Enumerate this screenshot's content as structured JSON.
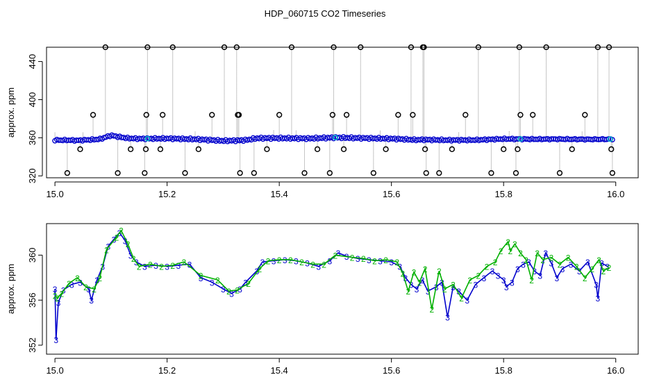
{
  "figure_title": "HDP_060715  CO2 Timeseries",
  "colors": {
    "black": "#000000",
    "grey": "#8c8c8c",
    "blue": "#0000cc",
    "green": "#00b000",
    "cyan": "#00cccc"
  },
  "chart_data": [
    {
      "type": "scatter",
      "title": "",
      "xlabel": "",
      "ylabel": "approx. ppm",
      "xlim": [
        14.985,
        16.04
      ],
      "ylim": [
        318,
        455
      ],
      "x_ticks": [
        "15.0",
        "15.2",
        "15.4",
        "15.6",
        "15.8",
        "16.0"
      ],
      "x_tick_values": [
        15.0,
        15.2,
        15.4,
        15.6,
        15.8,
        16.0
      ],
      "y_ticks": [
        "320",
        "360",
        "400",
        "440"
      ],
      "y_tick_values": [
        320,
        360,
        400,
        440
      ],
      "series": [
        {
          "style": "black-open-circles-with-grey-spikes",
          "outliers": [
            [
              15.022,
              323
            ],
            [
              15.045,
              348
            ],
            [
              15.068,
              384
            ],
            [
              15.09,
              455
            ],
            [
              15.112,
              323
            ],
            [
              15.135,
              348
            ],
            [
              15.16,
              323
            ],
            [
              15.162,
              348
            ],
            [
              15.163,
              384
            ],
            [
              15.165,
              455
            ],
            [
              15.188,
              348
            ],
            [
              15.192,
              384
            ],
            [
              15.21,
              455
            ],
            [
              15.232,
              323
            ],
            [
              15.256,
              348
            ],
            [
              15.28,
              384
            ],
            [
              15.302,
              455
            ],
            [
              15.324,
              455
            ],
            [
              15.326,
              384
            ],
            [
              15.328,
              384
            ],
            [
              15.33,
              323
            ],
            [
              15.355,
              323
            ],
            [
              15.378,
              348
            ],
            [
              15.4,
              384
            ],
            [
              15.422,
              455
            ],
            [
              15.445,
              323
            ],
            [
              15.468,
              348
            ],
            [
              15.49,
              323
            ],
            [
              15.495,
              384
            ],
            [
              15.497,
              455
            ],
            [
              15.515,
              348
            ],
            [
              15.52,
              384
            ],
            [
              15.545,
              455
            ],
            [
              15.568,
              323
            ],
            [
              15.59,
              348
            ],
            [
              15.612,
              384
            ],
            [
              15.635,
              455
            ],
            [
              15.638,
              384
            ],
            [
              15.656,
              455
            ],
            [
              15.658,
              455
            ],
            [
              15.66,
              348
            ],
            [
              15.662,
              323
            ],
            [
              15.685,
              323
            ],
            [
              15.708,
              348
            ],
            [
              15.732,
              384
            ],
            [
              15.755,
              455
            ],
            [
              15.778,
              323
            ],
            [
              15.8,
              348
            ],
            [
              15.822,
              323
            ],
            [
              15.825,
              348
            ],
            [
              15.828,
              455
            ],
            [
              15.83,
              384
            ],
            [
              15.852,
              384
            ],
            [
              15.876,
              455
            ],
            [
              15.9,
              323
            ],
            [
              15.922,
              348
            ],
            [
              15.945,
              384
            ],
            [
              15.968,
              455
            ],
            [
              15.988,
              455
            ],
            [
              15.992,
              348
            ],
            [
              15.994,
              323
            ]
          ],
          "baseline": [
            [
              15.0,
              357.5
            ],
            [
              15.02,
              357.5
            ],
            [
              15.04,
              357.2
            ],
            [
              15.06,
              357.8
            ],
            [
              15.08,
              358.5
            ],
            [
              15.1,
              362.5
            ],
            [
              15.115,
              360.8
            ],
            [
              15.13,
              359.5
            ],
            [
              15.15,
              359.0
            ],
            [
              15.2,
              359.2
            ],
            [
              15.25,
              358.5
            ],
            [
              15.3,
              356.8
            ],
            [
              15.32,
              357.0
            ],
            [
              15.34,
              357.5
            ],
            [
              15.36,
              359.5
            ],
            [
              15.4,
              359.6
            ],
            [
              15.45,
              359.2
            ],
            [
              15.5,
              360.2
            ],
            [
              15.55,
              359.6
            ],
            [
              15.6,
              359.0
            ],
            [
              15.62,
              358.5
            ],
            [
              15.64,
              357.8
            ],
            [
              15.66,
              358.0
            ],
            [
              15.7,
              357.5
            ],
            [
              15.75,
              357.6
            ],
            [
              15.8,
              358.8
            ],
            [
              15.85,
              358.5
            ],
            [
              15.9,
              358.6
            ],
            [
              15.95,
              358.3
            ],
            [
              15.99,
              358.5
            ]
          ]
        }
      ]
    },
    {
      "type": "line",
      "title": "",
      "xlabel": "",
      "ylabel": "approx. ppm",
      "xlim": [
        14.985,
        16.04
      ],
      "ylim": [
        351.2,
        362.8
      ],
      "x_ticks": [
        "15.0",
        "15.2",
        "15.4",
        "15.6",
        "15.8",
        "16.0"
      ],
      "x_tick_values": [
        15.0,
        15.2,
        15.4,
        15.6,
        15.8,
        16.0
      ],
      "y_ticks": [
        "352",
        "356",
        "360"
      ],
      "y_tick_values": [
        352,
        356,
        360
      ],
      "series": [
        {
          "marker": "3",
          "values": [
            [
              15.0,
              357.0
            ],
            [
              15.002,
              352.5
            ],
            [
              15.006,
              355.8
            ],
            [
              15.015,
              356.9
            ],
            [
              15.03,
              357.4
            ],
            [
              15.045,
              357.6
            ],
            [
              15.06,
              357.0
            ],
            [
              15.065,
              356.0
            ],
            [
              15.075,
              357.8
            ],
            [
              15.085,
              359.0
            ],
            [
              15.095,
              360.8
            ],
            [
              15.105,
              361.4
            ],
            [
              15.115,
              362.0
            ],
            [
              15.125,
              361.3
            ],
            [
              15.135,
              360.0
            ],
            [
              15.145,
              359.4
            ],
            [
              15.16,
              359.0
            ],
            [
              15.18,
              359.1
            ],
            [
              15.2,
              359.0
            ],
            [
              15.22,
              359.1
            ],
            [
              15.24,
              359.2
            ],
            [
              15.26,
              358.0
            ],
            [
              15.28,
              357.6
            ],
            [
              15.3,
              357.0
            ],
            [
              15.315,
              356.6
            ],
            [
              15.33,
              357.0
            ],
            [
              15.34,
              357.6
            ],
            [
              15.36,
              358.6
            ],
            [
              15.37,
              359.4
            ],
            [
              15.39,
              359.5
            ],
            [
              15.41,
              359.6
            ],
            [
              15.43,
              359.5
            ],
            [
              15.45,
              359.3
            ],
            [
              15.47,
              359.0
            ],
            [
              15.49,
              359.5
            ],
            [
              15.505,
              360.2
            ],
            [
              15.52,
              359.9
            ],
            [
              15.54,
              359.7
            ],
            [
              15.56,
              359.6
            ],
            [
              15.58,
              359.5
            ],
            [
              15.6,
              359.4
            ],
            [
              15.615,
              359.0
            ],
            [
              15.625,
              358.0
            ],
            [
              15.635,
              357.4
            ],
            [
              15.645,
              357.0
            ],
            [
              15.655,
              357.8
            ],
            [
              15.665,
              356.8
            ],
            [
              15.68,
              357.2
            ],
            [
              15.69,
              357.6
            ],
            [
              15.7,
              354.5
            ],
            [
              15.71,
              357.2
            ],
            [
              15.72,
              356.8
            ],
            [
              15.735,
              356.0
            ],
            [
              15.75,
              357.4
            ],
            [
              15.765,
              358.0
            ],
            [
              15.78,
              358.6
            ],
            [
              15.79,
              358.2
            ],
            [
              15.8,
              357.8
            ],
            [
              15.805,
              357.2
            ],
            [
              15.815,
              357.6
            ],
            [
              15.825,
              358.8
            ],
            [
              15.835,
              359.2
            ],
            [
              15.845,
              359.4
            ],
            [
              15.855,
              358.6
            ],
            [
              15.865,
              358.2
            ],
            [
              15.875,
              360.2
            ],
            [
              15.885,
              359.3
            ],
            [
              15.895,
              358.0
            ],
            [
              15.905,
              358.8
            ],
            [
              15.92,
              359.2
            ],
            [
              15.935,
              358.6
            ],
            [
              15.95,
              359.4
            ],
            [
              15.965,
              357.4
            ],
            [
              15.968,
              356.2
            ],
            [
              15.975,
              359.3
            ],
            [
              15.985,
              359.0
            ]
          ]
        },
        {
          "marker": "2",
          "values": [
            [
              15.0,
              356.4
            ],
            [
              15.004,
              356.2
            ],
            [
              15.012,
              356.6
            ],
            [
              15.025,
              357.5
            ],
            [
              15.04,
              358.0
            ],
            [
              15.055,
              357.2
            ],
            [
              15.07,
              357.0
            ],
            [
              15.08,
              358.0
            ],
            [
              15.092,
              360.5
            ],
            [
              15.11,
              361.6
            ],
            [
              15.118,
              362.2
            ],
            [
              15.13,
              361.0
            ],
            [
              15.14,
              359.7
            ],
            [
              15.15,
              359.0
            ],
            [
              15.17,
              359.2
            ],
            [
              15.19,
              359.0
            ],
            [
              15.21,
              359.1
            ],
            [
              15.23,
              359.4
            ],
            [
              15.26,
              358.2
            ],
            [
              15.29,
              357.8
            ],
            [
              15.31,
              356.8
            ],
            [
              15.325,
              356.9
            ],
            [
              15.345,
              357.5
            ],
            [
              15.365,
              358.8
            ],
            [
              15.38,
              359.5
            ],
            [
              15.4,
              359.6
            ],
            [
              15.42,
              359.6
            ],
            [
              15.44,
              359.4
            ],
            [
              15.46,
              359.2
            ],
            [
              15.48,
              359.2
            ],
            [
              15.5,
              360.0
            ],
            [
              15.53,
              359.8
            ],
            [
              15.55,
              359.7
            ],
            [
              15.57,
              359.5
            ],
            [
              15.59,
              359.6
            ],
            [
              15.61,
              359.4
            ],
            [
              15.62,
              358.4
            ],
            [
              15.63,
              356.8
            ],
            [
              15.64,
              358.5
            ],
            [
              15.65,
              357.6
            ],
            [
              15.66,
              358.8
            ],
            [
              15.672,
              355.2
            ],
            [
              15.685,
              358.6
            ],
            [
              15.695,
              357.0
            ],
            [
              15.71,
              357.4
            ],
            [
              15.725,
              356.2
            ],
            [
              15.74,
              357.8
            ],
            [
              15.755,
              358.2
            ],
            [
              15.77,
              359.0
            ],
            [
              15.785,
              359.4
            ],
            [
              15.795,
              360.4
            ],
            [
              15.808,
              361.2
            ],
            [
              15.812,
              360.4
            ],
            [
              15.82,
              361.0
            ],
            [
              15.83,
              360.2
            ],
            [
              15.84,
              359.6
            ],
            [
              15.85,
              357.8
            ],
            [
              15.86,
              360.2
            ],
            [
              15.87,
              359.6
            ],
            [
              15.885,
              359.8
            ],
            [
              15.9,
              359.2
            ],
            [
              15.915,
              359.8
            ],
            [
              15.93,
              359.0
            ],
            [
              15.945,
              358.0
            ],
            [
              15.958,
              358.8
            ],
            [
              15.97,
              359.6
            ],
            [
              15.978,
              358.6
            ],
            [
              15.988,
              358.9
            ]
          ]
        }
      ]
    }
  ]
}
